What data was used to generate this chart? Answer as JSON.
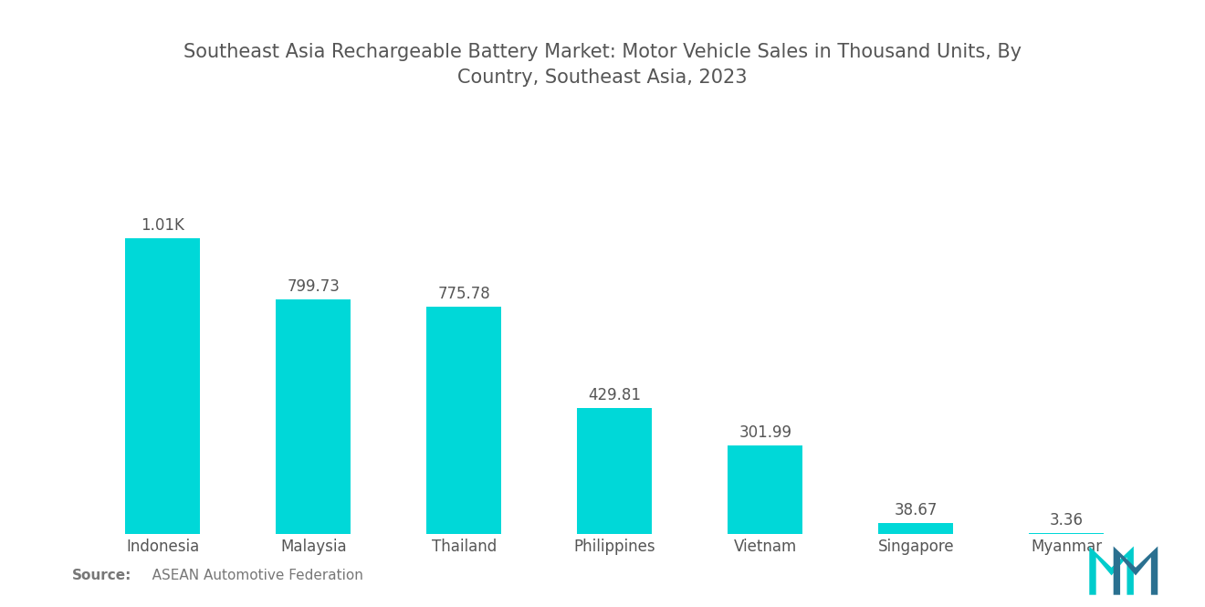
{
  "title": "Southeast Asia Rechargeable Battery Market: Motor Vehicle Sales in Thousand Units, By\nCountry, Southeast Asia, 2023",
  "categories": [
    "Indonesia",
    "Malaysia",
    "Thailand",
    "Philippines",
    "Vietnam",
    "Singapore",
    "Myanmar"
  ],
  "values": [
    1010.0,
    799.73,
    775.78,
    429.81,
    301.99,
    38.67,
    3.36
  ],
  "labels": [
    "1.01K",
    "799.73",
    "775.78",
    "429.81",
    "301.99",
    "38.67",
    "3.36"
  ],
  "bar_color": "#00D8D8",
  "background_color": "#FFFFFF",
  "title_color": "#555555",
  "label_color": "#555555",
  "source_text": "   ASEAN Automotive Federation",
  "source_bold": "Source:",
  "ylim": [
    0,
    1200
  ],
  "title_fontsize": 15,
  "label_fontsize": 12,
  "tick_fontsize": 12,
  "bar_width": 0.5
}
